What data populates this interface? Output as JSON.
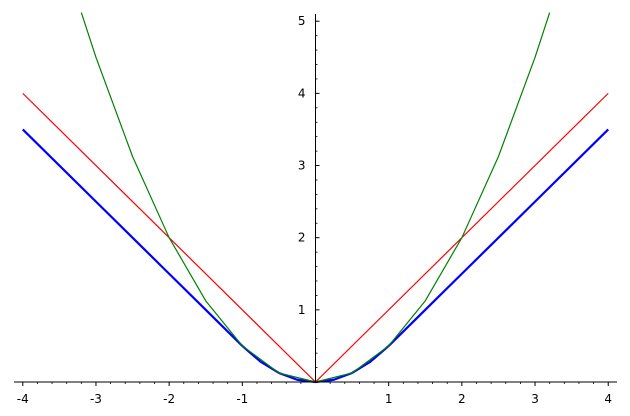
{
  "chart_data": {
    "type": "line",
    "title": "",
    "xlabel": "",
    "ylabel": "",
    "xlim": [
      -4.12,
      4.12
    ],
    "ylim": [
      0,
      5.1
    ],
    "grid": false,
    "x_ticks": [
      "-4",
      "-3",
      "-2",
      "-1",
      "1",
      "2",
      "3",
      "4"
    ],
    "y_ticks": [
      "1",
      "2",
      "3",
      "4",
      "5"
    ],
    "series": [
      {
        "color": "#0000ff",
        "x": [
          -4,
          -3,
          -2,
          -1.5,
          -1,
          -0.75,
          -0.5,
          -0.25,
          0,
          0.25,
          0.5,
          0.75,
          1,
          1.5,
          2,
          3,
          4
        ],
        "y": [
          3.5,
          2.5,
          1.5,
          1.0,
          0.5,
          0.281,
          0.125,
          0.031,
          0,
          0.031,
          0.125,
          0.281,
          0.5,
          1.0,
          1.5,
          2.5,
          3.5
        ]
      },
      {
        "color": "#ff0000",
        "x": [
          -4,
          0,
          4
        ],
        "y": [
          4,
          0,
          4
        ]
      },
      {
        "color": "#008000",
        "x": [
          -3.2,
          -3,
          -2.5,
          -2,
          -1.5,
          -1,
          -0.5,
          0,
          0.5,
          1,
          1.5,
          2,
          2.5,
          3,
          3.2
        ],
        "y": [
          5.12,
          4.5,
          3.125,
          2.0,
          1.125,
          0.5,
          0.125,
          0,
          0.125,
          0.5,
          1.125,
          2.0,
          3.125,
          4.5,
          5.12
        ]
      }
    ]
  }
}
